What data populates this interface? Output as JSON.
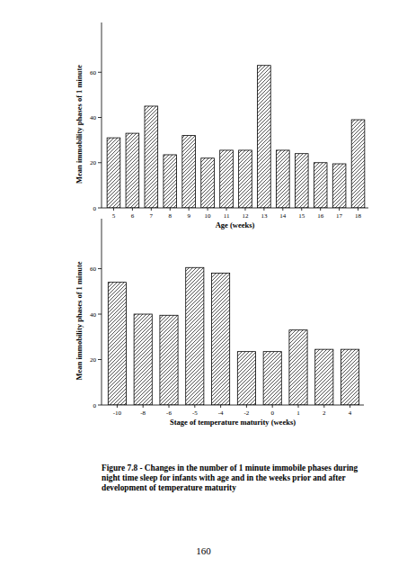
{
  "chart_data": [
    {
      "type": "bar",
      "x_label": "Age (weeks)",
      "y_label": "Mean immobility phases of 1 minute",
      "categories": [
        "5",
        "6",
        "7",
        "8",
        "9",
        "10",
        "11",
        "12",
        "13",
        "14",
        "15",
        "16",
        "17",
        "18"
      ],
      "values": [
        31,
        33,
        45,
        23.5,
        32,
        22,
        25.5,
        25.5,
        63,
        25.5,
        24,
        20,
        19.5,
        39
      ],
      "color": "#555555",
      "ylim": [
        0,
        82
      ],
      "yticks": [
        0,
        20,
        40,
        60
      ],
      "grid": false
    },
    {
      "type": "bar",
      "x_label": "Stage of temperature maturity (weeks)",
      "y_label": "Mean immobility phases of 1 minute",
      "categories": [
        "-10",
        "-8",
        "-6",
        "-5",
        "-4",
        "-2",
        "0",
        "1",
        "2",
        "4"
      ],
      "values": [
        54,
        40,
        39.5,
        60.5,
        58,
        23.5,
        23.5,
        33,
        24.5,
        24.5
      ],
      "color": "#555555",
      "ylim": [
        0,
        82
      ],
      "yticks": [
        0,
        20,
        40,
        60
      ],
      "grid": false
    }
  ],
  "figure": {
    "caption": "Figure 7.8 - Changes in the number of 1 minute immobile phases during night time sleep for infants with age and in the weeks prior and after development of temperature maturity",
    "page_number": 160
  }
}
